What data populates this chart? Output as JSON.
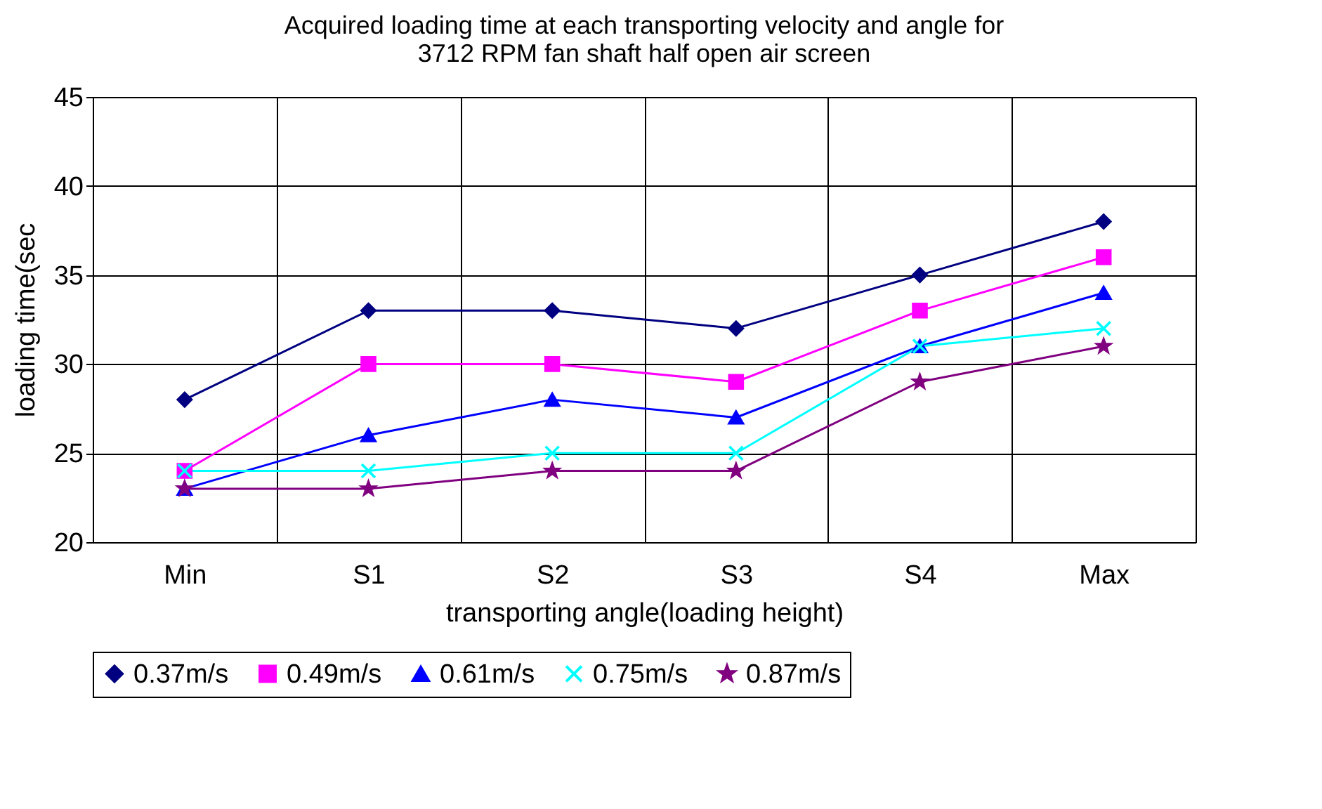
{
  "chart_data": {
    "type": "line",
    "title": "Acquired loading time at each transporting velocity and angle for 3712 RPM fan shaft half open air screen",
    "xlabel": "transporting angle(loading height)",
    "ylabel": "loading time(sec",
    "categories": [
      "Min",
      "S1",
      "S2",
      "S3",
      "S4",
      "Max"
    ],
    "series": [
      {
        "name": "0.37m/s",
        "color": "#000080",
        "marker": "diamond",
        "values": [
          28,
          33,
          33,
          32,
          35,
          38
        ]
      },
      {
        "name": "0.49m/s",
        "color": "#ff00ff",
        "marker": "square",
        "values": [
          24,
          30,
          30,
          29,
          33,
          36
        ]
      },
      {
        "name": "0.61m/s",
        "color": "#0000ff",
        "marker": "triangle",
        "values": [
          23,
          26,
          28,
          27,
          31,
          34
        ]
      },
      {
        "name": "0.75m/s",
        "color": "#00ffff",
        "marker": "cross",
        "values": [
          24,
          24,
          25,
          25,
          31,
          32
        ]
      },
      {
        "name": "0.87m/s",
        "color": "#800080",
        "marker": "star",
        "values": [
          23,
          23,
          24,
          24,
          29,
          31
        ]
      }
    ],
    "ylim": [
      20,
      45
    ],
    "yticks": [
      20,
      25,
      30,
      35,
      40,
      45
    ],
    "grid": true,
    "legend": "bottom",
    "line_style": "solid"
  }
}
